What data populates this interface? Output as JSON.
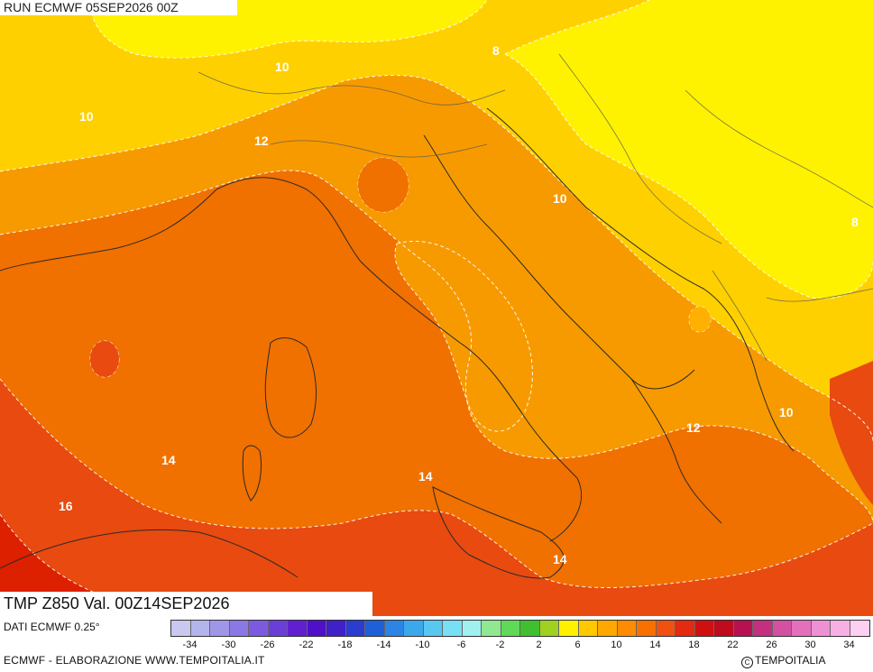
{
  "header": {
    "run_label": "RUN ECMWF 05SEP2026 00Z"
  },
  "map": {
    "variable_label": "TMP Z850 Val. 00Z14SEP2026",
    "isotherm_labels": [
      "8",
      "10",
      "12",
      "14",
      "16"
    ],
    "fill_colors": {
      "c6": "#fff200",
      "c8": "#ffd000",
      "c10": "#ffb000",
      "c12": "#f79a00",
      "c14": "#f07000",
      "c16": "#e84a10",
      "c18": "#dd2000"
    }
  },
  "footer": {
    "data_source": "DATI ECMWF 0.25°",
    "credit": "ECMWF - ELABORAZIONE WWW.TEMPOITALIA.IT",
    "copyright": "TEMPOITALIA"
  },
  "legend": {
    "colors": [
      "#c8c8f0",
      "#b4b4ec",
      "#a096e8",
      "#8c78e4",
      "#7c5ae0",
      "#6c3ed8",
      "#6020d0",
      "#5010c8",
      "#4020c8",
      "#2c3cd0",
      "#1e60d8",
      "#2c84e4",
      "#3ca8ec",
      "#58c8f0",
      "#78e0f4",
      "#a0f0f0",
      "#90e890",
      "#60d858",
      "#40c030",
      "#a0d020",
      "#fff000",
      "#ffc800",
      "#ffa800",
      "#ff8c00",
      "#f87000",
      "#f05010",
      "#e42a10",
      "#d01010",
      "#c00a1e",
      "#b81050",
      "#c43080",
      "#d450a0",
      "#e470bc",
      "#f090d4",
      "#f8b0e4",
      "#fcd0f0"
    ],
    "tick_labels": [
      "-34",
      "-30",
      "-26",
      "-22",
      "-18",
      "-14",
      "-10",
      "-6",
      "-2",
      "2",
      "6",
      "10",
      "14",
      "18",
      "22",
      "26",
      "30",
      "34"
    ]
  }
}
